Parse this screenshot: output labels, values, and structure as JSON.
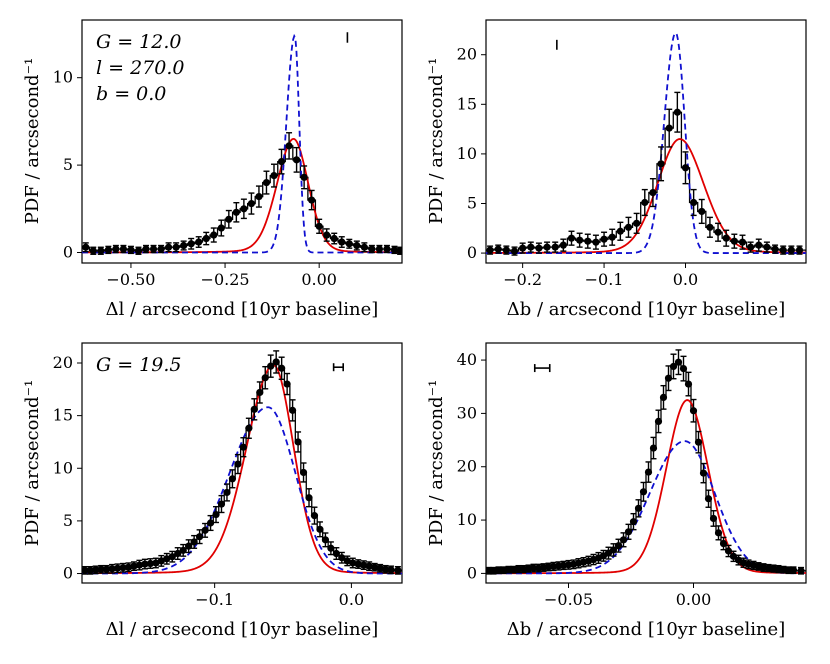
{
  "chart_data": [
    {
      "type": "line",
      "panel": "top-left",
      "xlabel": "Δl / arcsecond [10yr baseline]",
      "ylabel": "PDF / arcsecond⁻¹",
      "xlim": [
        -0.63,
        0.22
      ],
      "ylim": [
        -0.6,
        13.3
      ],
      "xticks": [
        -0.5,
        -0.25,
        0.0
      ],
      "xtick_labels": [
        "−0.50",
        "−0.25",
        "0.00"
      ],
      "yticks": [
        0,
        5,
        10
      ],
      "ytick_labels": [
        "0",
        "5",
        "10"
      ],
      "annotations": [
        "G = 12.0",
        "l = 270.0",
        "b = 0.0"
      ],
      "bin_edges": [
        -0.63,
        -0.61,
        -0.59,
        -0.57,
        -0.55,
        -0.53,
        -0.51,
        -0.49,
        -0.47,
        -0.45,
        -0.43,
        -0.41,
        -0.39,
        -0.37,
        -0.35,
        -0.33,
        -0.31,
        -0.29,
        -0.27,
        -0.25,
        -0.23,
        -0.21,
        -0.19,
        -0.17,
        -0.15,
        -0.13,
        -0.11,
        -0.09,
        -0.07,
        -0.05,
        -0.03,
        -0.01,
        0.01,
        0.03,
        0.05,
        0.07,
        0.09,
        0.11,
        0.13,
        0.15,
        0.17,
        0.19,
        0.21,
        0.22
      ],
      "points": {
        "x": [
          -0.62,
          -0.6,
          -0.58,
          -0.56,
          -0.54,
          -0.52,
          -0.5,
          -0.48,
          -0.46,
          -0.44,
          -0.42,
          -0.4,
          -0.38,
          -0.36,
          -0.34,
          -0.32,
          -0.3,
          -0.28,
          -0.26,
          -0.24,
          -0.22,
          -0.2,
          -0.18,
          -0.16,
          -0.14,
          -0.12,
          -0.1,
          -0.08,
          -0.06,
          -0.04,
          -0.02,
          0.0,
          0.02,
          0.04,
          0.06,
          0.08,
          0.1,
          0.12,
          0.14,
          0.16,
          0.18,
          0.2,
          0.215
        ],
        "y": [
          0.3,
          0.1,
          0.1,
          0.15,
          0.2,
          0.2,
          0.15,
          0.1,
          0.2,
          0.2,
          0.2,
          0.3,
          0.3,
          0.4,
          0.5,
          0.6,
          0.8,
          1.0,
          1.4,
          1.9,
          2.3,
          2.5,
          2.8,
          3.2,
          4.0,
          4.4,
          5.2,
          6.1,
          5.3,
          4.3,
          3.0,
          1.5,
          1.0,
          0.8,
          0.6,
          0.5,
          0.4,
          0.3,
          0.2,
          0.2,
          0.2,
          0.15,
          0.1
        ],
        "yerr": [
          0.25,
          0.2,
          0.2,
          0.2,
          0.2,
          0.2,
          0.2,
          0.2,
          0.2,
          0.2,
          0.2,
          0.25,
          0.25,
          0.25,
          0.3,
          0.3,
          0.35,
          0.4,
          0.45,
          0.5,
          0.55,
          0.55,
          0.6,
          0.6,
          0.65,
          0.65,
          0.7,
          0.75,
          0.7,
          0.65,
          0.55,
          0.4,
          0.35,
          0.3,
          0.3,
          0.25,
          0.25,
          0.25,
          0.2,
          0.2,
          0.2,
          0.2,
          0.2
        ]
      },
      "series": [
        {
          "name": "red model",
          "color": "#e00000",
          "style": "solid",
          "peak_x": -0.068,
          "peak_y": 6.5,
          "width_left": 0.045,
          "width_right": 0.04,
          "wing": 0.13
        },
        {
          "name": "blue model",
          "color": "#1010d0",
          "style": "dashed",
          "peak_x": -0.065,
          "peak_y": 12.4,
          "width_left": 0.022,
          "width_right": 0.012,
          "wing": 0.0
        }
      ],
      "scale_bar": {
        "x": 0.075,
        "y_center": 12.3,
        "half_height": 0.3,
        "orientation": "vertical"
      }
    },
    {
      "type": "line",
      "panel": "top-right",
      "xlabel": "Δb / arcsecond [10yr baseline]",
      "ylabel": "PDF / arcsecond⁻¹",
      "xlim": [
        -0.245,
        0.148
      ],
      "ylim": [
        -1.0,
        23.5
      ],
      "xticks": [
        -0.2,
        -0.1,
        0.0
      ],
      "xtick_labels": [
        "−0.2",
        "−0.1",
        "0.0"
      ],
      "yticks": [
        0,
        5,
        10,
        15,
        20
      ],
      "ytick_labels": [
        "0",
        "5",
        "10",
        "15",
        "20"
      ],
      "annotations": [],
      "bin_edges": [
        -0.245,
        -0.235,
        -0.225,
        -0.215,
        -0.205,
        -0.195,
        -0.185,
        -0.175,
        -0.165,
        -0.155,
        -0.145,
        -0.135,
        -0.125,
        -0.115,
        -0.105,
        -0.095,
        -0.085,
        -0.075,
        -0.065,
        -0.055,
        -0.045,
        -0.035,
        -0.025,
        -0.015,
        -0.005,
        0.005,
        0.015,
        0.025,
        0.035,
        0.045,
        0.055,
        0.065,
        0.075,
        0.085,
        0.095,
        0.105,
        0.115,
        0.125,
        0.135,
        0.148
      ],
      "points": {
        "x": [
          -0.24,
          -0.23,
          -0.22,
          -0.21,
          -0.2,
          -0.19,
          -0.18,
          -0.17,
          -0.16,
          -0.15,
          -0.14,
          -0.13,
          -0.12,
          -0.11,
          -0.1,
          -0.09,
          -0.08,
          -0.07,
          -0.06,
          -0.05,
          -0.04,
          -0.03,
          -0.02,
          -0.01,
          0.0,
          0.01,
          0.02,
          0.03,
          0.04,
          0.05,
          0.06,
          0.07,
          0.08,
          0.09,
          0.1,
          0.11,
          0.12,
          0.13,
          0.14
        ],
        "y": [
          0.3,
          0.4,
          0.3,
          0.2,
          0.5,
          0.6,
          0.5,
          0.6,
          0.6,
          0.8,
          1.5,
          1.3,
          1.2,
          1.1,
          1.4,
          1.6,
          2.2,
          2.6,
          3.0,
          5.1,
          6.1,
          9.0,
          12.6,
          14.2,
          8.6,
          5.1,
          4.2,
          2.6,
          2.1,
          1.5,
          1.2,
          1.1,
          0.6,
          0.8,
          0.6,
          0.4,
          0.3,
          0.3,
          0.3
        ],
        "yerr": [
          0.4,
          0.4,
          0.4,
          0.4,
          0.5,
          0.5,
          0.5,
          0.5,
          0.5,
          0.6,
          0.7,
          0.7,
          0.7,
          0.7,
          0.7,
          0.8,
          0.9,
          1.0,
          1.0,
          1.3,
          1.4,
          1.7,
          1.9,
          2.0,
          1.6,
          1.3,
          1.2,
          1.0,
          0.9,
          0.8,
          0.7,
          0.7,
          0.5,
          0.6,
          0.5,
          0.4,
          0.4,
          0.4,
          0.4
        ]
      },
      "series": [
        {
          "name": "red model",
          "color": "#e00000",
          "style": "solid",
          "peak_x": -0.007,
          "peak_y": 11.5,
          "width_left": 0.028,
          "width_right": 0.03,
          "wing": 0.12
        },
        {
          "name": "blue model",
          "color": "#1010d0",
          "style": "dashed",
          "peak_x": -0.012,
          "peak_y": 22.2,
          "width_left": 0.014,
          "width_right": 0.011,
          "wing": 0.0
        }
      ],
      "scale_bar": {
        "x": -0.158,
        "y_center": 21.0,
        "half_height": 0.5,
        "orientation": "vertical"
      }
    },
    {
      "type": "line",
      "panel": "bottom-left",
      "xlabel": "Δl / arcsecond [10yr baseline]",
      "ylabel": "PDF / arcsecond⁻¹",
      "xlim": [
        -0.197,
        0.037
      ],
      "ylim": [
        -0.9,
        21.9
      ],
      "xticks": [
        -0.1,
        0.0
      ],
      "xtick_labels": [
        "−0.1",
        "0.0"
      ],
      "yticks": [
        0,
        5,
        10,
        15,
        20
      ],
      "ytick_labels": [
        "0",
        "5",
        "10",
        "15",
        "20"
      ],
      "annotations": [
        "G = 19.5"
      ],
      "bin_edges": [
        -0.197,
        -0.193,
        -0.189,
        -0.185,
        -0.181,
        -0.177,
        -0.173,
        -0.169,
        -0.165,
        -0.161,
        -0.157,
        -0.153,
        -0.149,
        -0.145,
        -0.141,
        -0.137,
        -0.133,
        -0.129,
        -0.125,
        -0.121,
        -0.117,
        -0.113,
        -0.109,
        -0.105,
        -0.101,
        -0.097,
        -0.093,
        -0.089,
        -0.085,
        -0.081,
        -0.077,
        -0.073,
        -0.069,
        -0.065,
        -0.061,
        -0.057,
        -0.053,
        -0.049,
        -0.045,
        -0.041,
        -0.037,
        -0.033,
        -0.029,
        -0.025,
        -0.021,
        -0.017,
        -0.013,
        -0.009,
        -0.005,
        -0.001,
        0.003,
        0.007,
        0.011,
        0.015,
        0.019,
        0.023,
        0.027,
        0.031,
        0.037
      ],
      "points": {
        "x": [
          -0.195,
          -0.191,
          -0.187,
          -0.183,
          -0.179,
          -0.175,
          -0.171,
          -0.167,
          -0.163,
          -0.159,
          -0.155,
          -0.151,
          -0.147,
          -0.143,
          -0.139,
          -0.135,
          -0.131,
          -0.127,
          -0.123,
          -0.119,
          -0.115,
          -0.111,
          -0.107,
          -0.103,
          -0.099,
          -0.095,
          -0.091,
          -0.087,
          -0.083,
          -0.079,
          -0.075,
          -0.071,
          -0.067,
          -0.063,
          -0.059,
          -0.055,
          -0.051,
          -0.047,
          -0.043,
          -0.039,
          -0.035,
          -0.031,
          -0.027,
          -0.023,
          -0.019,
          -0.015,
          -0.011,
          -0.007,
          -0.003,
          0.001,
          0.005,
          0.009,
          0.013,
          0.017,
          0.021,
          0.025,
          0.029,
          0.034
        ],
        "y": [
          0.3,
          0.3,
          0.35,
          0.4,
          0.4,
          0.45,
          0.5,
          0.55,
          0.6,
          0.7,
          0.8,
          0.9,
          0.95,
          1.0,
          1.2,
          1.4,
          1.6,
          1.9,
          2.2,
          2.6,
          3.0,
          3.5,
          4.1,
          4.8,
          5.6,
          6.6,
          7.7,
          9.0,
          10.4,
          12.0,
          13.8,
          15.6,
          17.2,
          18.6,
          19.7,
          20.1,
          19.5,
          18.0,
          15.5,
          12.5,
          9.6,
          7.2,
          5.5,
          4.2,
          3.2,
          2.4,
          1.9,
          1.5,
          1.2,
          1.0,
          0.9,
          0.8,
          0.7,
          0.6,
          0.5,
          0.4,
          0.35,
          0.3
        ],
        "yerr": [
          0.35,
          0.35,
          0.35,
          0.35,
          0.35,
          0.4,
          0.4,
          0.4,
          0.4,
          0.4,
          0.45,
          0.45,
          0.45,
          0.45,
          0.5,
          0.5,
          0.5,
          0.55,
          0.55,
          0.6,
          0.6,
          0.65,
          0.65,
          0.7,
          0.75,
          0.8,
          0.8,
          0.85,
          0.9,
          0.9,
          0.95,
          1.0,
          1.0,
          1.05,
          1.05,
          1.05,
          1.05,
          1.0,
          1.0,
          0.95,
          0.9,
          0.85,
          0.8,
          0.7,
          0.65,
          0.6,
          0.55,
          0.5,
          0.45,
          0.45,
          0.4,
          0.4,
          0.4,
          0.35,
          0.35,
          0.35,
          0.35,
          0.35
        ]
      },
      "series": [
        {
          "name": "red model",
          "color": "#e00000",
          "style": "solid",
          "peak_x": -0.057,
          "peak_y": 19.8,
          "width_left": 0.02,
          "width_right": 0.015,
          "wing": 0.08
        },
        {
          "name": "blue model",
          "color": "#1010d0",
          "style": "dashed",
          "peak_x": -0.061,
          "peak_y": 15.8,
          "width_left": 0.028,
          "width_right": 0.02,
          "wing": 0.0
        }
      ],
      "scale_bar": {
        "x_center": -0.0095,
        "y": 19.6,
        "half_width": 0.0035,
        "orientation": "horizontal"
      }
    },
    {
      "type": "line",
      "panel": "bottom-right",
      "xlabel": "Δb / arcsecond [10yr baseline]",
      "ylabel": "PDF / arcsecond⁻¹",
      "xlim": [
        -0.083,
        0.045
      ],
      "ylim": [
        -1.8,
        43.2
      ],
      "xticks": [
        -0.05,
        0.0
      ],
      "xtick_labels": [
        "−0.05",
        "0.00"
      ],
      "yticks": [
        0,
        10,
        20,
        30,
        40
      ],
      "ytick_labels": [
        "0",
        "10",
        "20",
        "30",
        "40"
      ],
      "annotations": [],
      "bin_edges": [
        -0.083,
        -0.081,
        -0.079,
        -0.077,
        -0.075,
        -0.073,
        -0.071,
        -0.069,
        -0.067,
        -0.065,
        -0.063,
        -0.061,
        -0.059,
        -0.057,
        -0.055,
        -0.053,
        -0.051,
        -0.049,
        -0.047,
        -0.045,
        -0.043,
        -0.041,
        -0.039,
        -0.037,
        -0.035,
        -0.033,
        -0.031,
        -0.029,
        -0.027,
        -0.025,
        -0.023,
        -0.021,
        -0.019,
        -0.017,
        -0.015,
        -0.013,
        -0.011,
        -0.009,
        -0.007,
        -0.005,
        -0.003,
        -0.001,
        0.001,
        0.003,
        0.005,
        0.007,
        0.009,
        0.011,
        0.013,
        0.015,
        0.017,
        0.019,
        0.021,
        0.023,
        0.025,
        0.027,
        0.029,
        0.031,
        0.033,
        0.035,
        0.037,
        0.039,
        0.041,
        0.045
      ],
      "points": {
        "x": [
          -0.082,
          -0.08,
          -0.078,
          -0.076,
          -0.074,
          -0.072,
          -0.07,
          -0.068,
          -0.066,
          -0.064,
          -0.062,
          -0.06,
          -0.058,
          -0.056,
          -0.054,
          -0.052,
          -0.05,
          -0.048,
          -0.046,
          -0.044,
          -0.042,
          -0.04,
          -0.038,
          -0.036,
          -0.034,
          -0.032,
          -0.03,
          -0.028,
          -0.026,
          -0.024,
          -0.022,
          -0.02,
          -0.018,
          -0.016,
          -0.014,
          -0.012,
          -0.01,
          -0.008,
          -0.006,
          -0.004,
          -0.002,
          0.0,
          0.002,
          0.004,
          0.006,
          0.008,
          0.01,
          0.012,
          0.014,
          0.016,
          0.018,
          0.02,
          0.022,
          0.024,
          0.026,
          0.028,
          0.03,
          0.032,
          0.034,
          0.036,
          0.038,
          0.04,
          0.043
        ],
        "y": [
          0.5,
          0.5,
          0.6,
          0.6,
          0.7,
          0.7,
          0.8,
          0.8,
          0.9,
          1.0,
          1.0,
          1.1,
          1.2,
          1.3,
          1.4,
          1.5,
          1.6,
          1.7,
          1.9,
          2.1,
          2.3,
          2.6,
          2.9,
          3.3,
          3.8,
          4.4,
          5.2,
          6.3,
          7.8,
          9.7,
          12.2,
          15.3,
          19.0,
          23.5,
          28.5,
          33.0,
          36.6,
          38.8,
          39.6,
          38.4,
          35.5,
          30.5,
          24.6,
          18.8,
          14.0,
          10.3,
          7.6,
          5.6,
          4.2,
          3.2,
          2.5,
          2.0,
          1.7,
          1.5,
          1.3,
          1.1,
          1.0,
          0.9,
          0.8,
          0.7,
          0.6,
          0.6,
          0.5
        ],
        "yerr": [
          0.6,
          0.6,
          0.6,
          0.6,
          0.6,
          0.6,
          0.65,
          0.65,
          0.65,
          0.7,
          0.7,
          0.7,
          0.7,
          0.75,
          0.75,
          0.75,
          0.8,
          0.8,
          0.85,
          0.85,
          0.9,
          0.95,
          1.0,
          1.0,
          1.1,
          1.15,
          1.2,
          1.3,
          1.4,
          1.5,
          1.6,
          1.75,
          1.9,
          2.0,
          2.1,
          2.2,
          2.3,
          2.3,
          2.3,
          2.3,
          2.2,
          2.1,
          2.0,
          1.8,
          1.6,
          1.45,
          1.3,
          1.15,
          1.05,
          0.95,
          0.9,
          0.85,
          0.8,
          0.75,
          0.7,
          0.7,
          0.65,
          0.65,
          0.65,
          0.6,
          0.6,
          0.6,
          0.6
        ]
      },
      "series": [
        {
          "name": "red model",
          "color": "#e00000",
          "style": "solid",
          "peak_x": -0.0025,
          "peak_y": 32.5,
          "width_left": 0.0085,
          "width_right": 0.0085,
          "wing": 0.07
        },
        {
          "name": "blue model",
          "color": "#1010d0",
          "style": "dashed",
          "peak_x": -0.0035,
          "peak_y": 24.8,
          "width_left": 0.014,
          "width_right": 0.012,
          "wing": 0.0
        }
      ],
      "scale_bar": {
        "x_center": -0.0605,
        "y": 38.5,
        "half_width": 0.003,
        "orientation": "horizontal"
      }
    }
  ]
}
